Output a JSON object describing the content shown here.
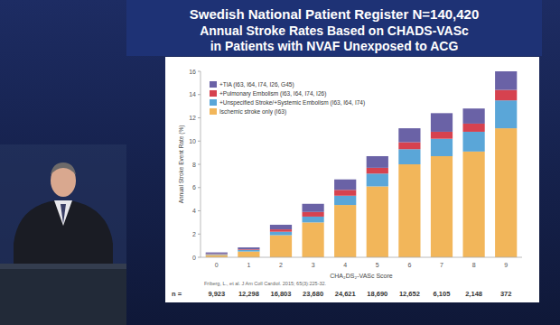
{
  "chart_data": {
    "type": "bar",
    "stacked": true,
    "grid": false,
    "legend": "top-left",
    "title": "Swedish National Patient Register N=140,420",
    "subtitle": [
      "Annual Stroke Rates Based on CHADS-VASc",
      "in Patients with NVAF Unexposed to ACG"
    ],
    "x_label": "CHA₂DS₂-VASc Score",
    "y_label": "Annual Stroke Event Rate (%)",
    "categories": [
      "0",
      "1",
      "2",
      "3",
      "4",
      "5",
      "6",
      "7",
      "8",
      "9"
    ],
    "series": [
      {
        "name": "Ischemic stroke only (I63)",
        "color": "#f2b65a",
        "values": [
          0.2,
          0.5,
          1.9,
          3.0,
          4.5,
          6.1,
          8.0,
          8.7,
          9.1,
          11.1
        ]
      },
      {
        "name": "+Unspecified Stroke/+Systemic Embolism (I63, I64, I74)",
        "color": "#5aa6d8",
        "values": [
          0.08,
          0.15,
          0.3,
          0.5,
          0.8,
          1.1,
          1.3,
          1.5,
          1.7,
          2.4
        ]
      },
      {
        "name": "+Pulmonary Embolism (I63, I64, I74, I26)",
        "color": "#d6424f",
        "values": [
          0.04,
          0.05,
          0.2,
          0.4,
          0.5,
          0.5,
          0.6,
          0.6,
          0.7,
          0.9
        ]
      },
      {
        "name": "+TIA (I63, I64, I74, I26, G45)",
        "color": "#6a62a6",
        "values": [
          0.1,
          0.15,
          0.4,
          0.7,
          0.9,
          1.0,
          1.2,
          1.6,
          1.3,
          1.6
        ]
      }
    ],
    "ylim": [
      0,
      16
    ],
    "yticks": [
      0,
      2,
      4,
      6,
      8,
      10,
      12,
      14,
      16
    ],
    "sample_size_label": "n =",
    "sample_sizes": [
      "9,923",
      "12,298",
      "16,803",
      "23,680",
      "24,621",
      "18,690",
      "12,652",
      "6,105",
      "2,148",
      "372"
    ],
    "source": "Friberg, L., et al. J Am Coll Cardiol. 2015; 65(3):225-32."
  }
}
